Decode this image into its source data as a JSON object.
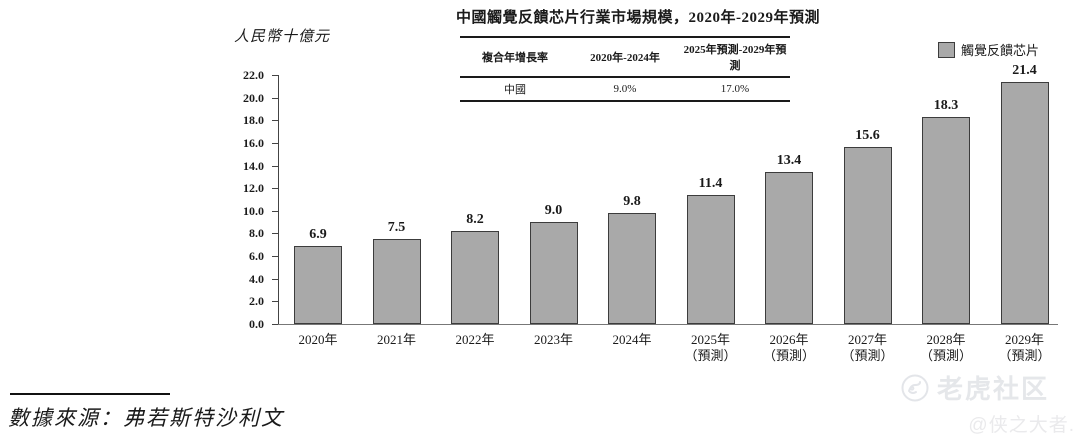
{
  "title": "中國觸覺反饋芯片行業市場規模，2020年-2029年預測",
  "unit_label": "人民幣十億元",
  "legend": {
    "label": "觸覺反饋芯片",
    "swatch_color": "#a9a9a9",
    "swatch_border": "#3c3c3c"
  },
  "cagr_table": {
    "headers": [
      "複合年增長率",
      "2020年-2024年",
      "2025年預測-2029年預測"
    ],
    "rows": [
      [
        "中國",
        "9.0%",
        "17.0%"
      ]
    ]
  },
  "chart_data": {
    "type": "bar",
    "title": "中國觸覺反饋芯片行業市場規模，2020年-2029年預測",
    "series_name": "觸覺反饋芯片",
    "ylabel": "人民幣十億元",
    "ylim": [
      0,
      22
    ],
    "ytick_step": 2,
    "grid": false,
    "legend_position": "top-right",
    "bar_color": "#a9a9a9",
    "bar_border_color": "#3c3c3c",
    "categories": [
      {
        "year": "2020年",
        "note": ""
      },
      {
        "year": "2021年",
        "note": ""
      },
      {
        "year": "2022年",
        "note": ""
      },
      {
        "year": "2023年",
        "note": ""
      },
      {
        "year": "2024年",
        "note": ""
      },
      {
        "year": "2025年",
        "note": "（預測）"
      },
      {
        "year": "2026年",
        "note": "（預測）"
      },
      {
        "year": "2027年",
        "note": "（預測）"
      },
      {
        "year": "2028年",
        "note": "（預測）"
      },
      {
        "year": "2029年",
        "note": "（預測）"
      }
    ],
    "values": [
      6.9,
      7.5,
      8.2,
      9.0,
      9.8,
      11.4,
      13.4,
      15.6,
      18.3,
      21.4
    ],
    "value_labels": [
      "6.9",
      "7.5",
      "8.2",
      "9.0",
      "9.8",
      "11.4",
      "13.4",
      "15.6",
      "18.3",
      "21.4"
    ]
  },
  "source": "數據來源：弗若斯特沙利文",
  "watermark": {
    "brand": "老虎社区",
    "author": "@侠之大者."
  }
}
